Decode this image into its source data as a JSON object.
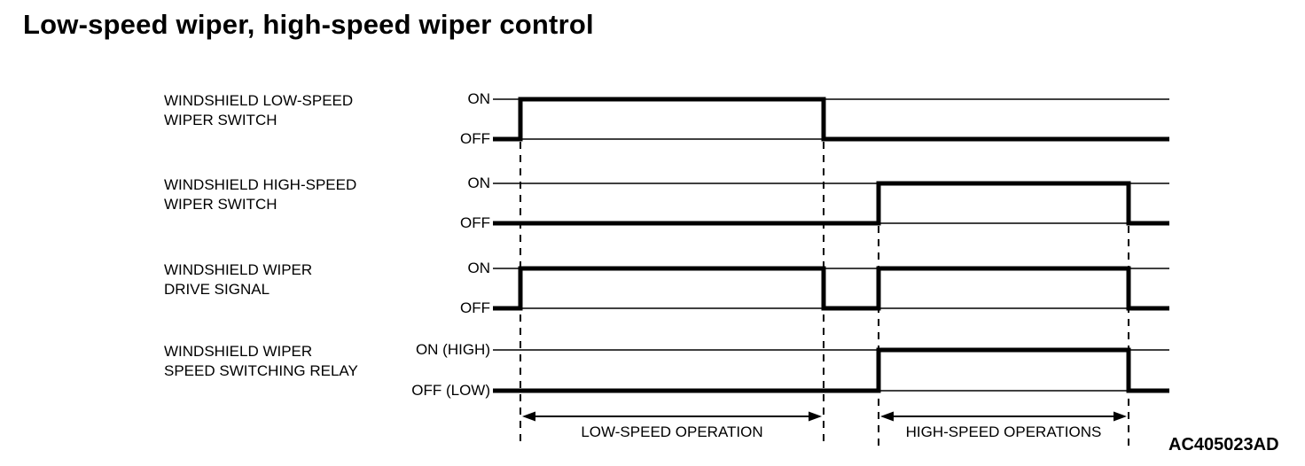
{
  "title": "Low-speed wiper, high-speed wiper control",
  "figure_code": "AC405023AD",
  "colors": {
    "ink": "#000000",
    "background": "#ffffff"
  },
  "diagram": {
    "type": "timing",
    "time_indices": [
      0,
      1,
      2,
      3,
      4,
      5
    ],
    "signals": [
      {
        "label": "WINDSHIELD LOW-SPEED\nWIPER SWITCH",
        "on_label": "ON",
        "off_label": "OFF",
        "segments": [
          {
            "level": "OFF",
            "from": 0,
            "to": 1
          },
          {
            "level": "ON",
            "from": 1,
            "to": 2
          },
          {
            "level": "OFF",
            "from": 2,
            "to": 5
          }
        ]
      },
      {
        "label": "WINDSHIELD HIGH-SPEED\nWIPER SWITCH",
        "on_label": "ON",
        "off_label": "OFF",
        "segments": [
          {
            "level": "OFF",
            "from": 0,
            "to": 3
          },
          {
            "level": "ON",
            "from": 3,
            "to": 4
          },
          {
            "level": "OFF",
            "from": 4,
            "to": 5
          }
        ]
      },
      {
        "label": "WINDSHIELD WIPER\nDRIVE SIGNAL",
        "on_label": "ON",
        "off_label": "OFF",
        "segments": [
          {
            "level": "OFF",
            "from": 0,
            "to": 1
          },
          {
            "level": "ON",
            "from": 1,
            "to": 2
          },
          {
            "level": "OFF",
            "from": 2,
            "to": 3
          },
          {
            "level": "ON",
            "from": 3,
            "to": 4
          },
          {
            "level": "OFF",
            "from": 4,
            "to": 5
          }
        ]
      },
      {
        "label": "WINDSHIELD WIPER\nSPEED SWITCHING RELAY",
        "on_label": "ON (HIGH)",
        "off_label": "OFF (LOW)",
        "segments": [
          {
            "level": "OFF",
            "from": 0,
            "to": 3
          },
          {
            "level": "ON",
            "from": 3,
            "to": 4
          },
          {
            "level": "OFF",
            "from": 4,
            "to": 5
          }
        ]
      }
    ],
    "annotations": [
      {
        "label": "LOW-SPEED OPERATION",
        "from": 1,
        "to": 2
      },
      {
        "label": "HIGH-SPEED OPERATIONS",
        "from": 3,
        "to": 4
      }
    ]
  }
}
